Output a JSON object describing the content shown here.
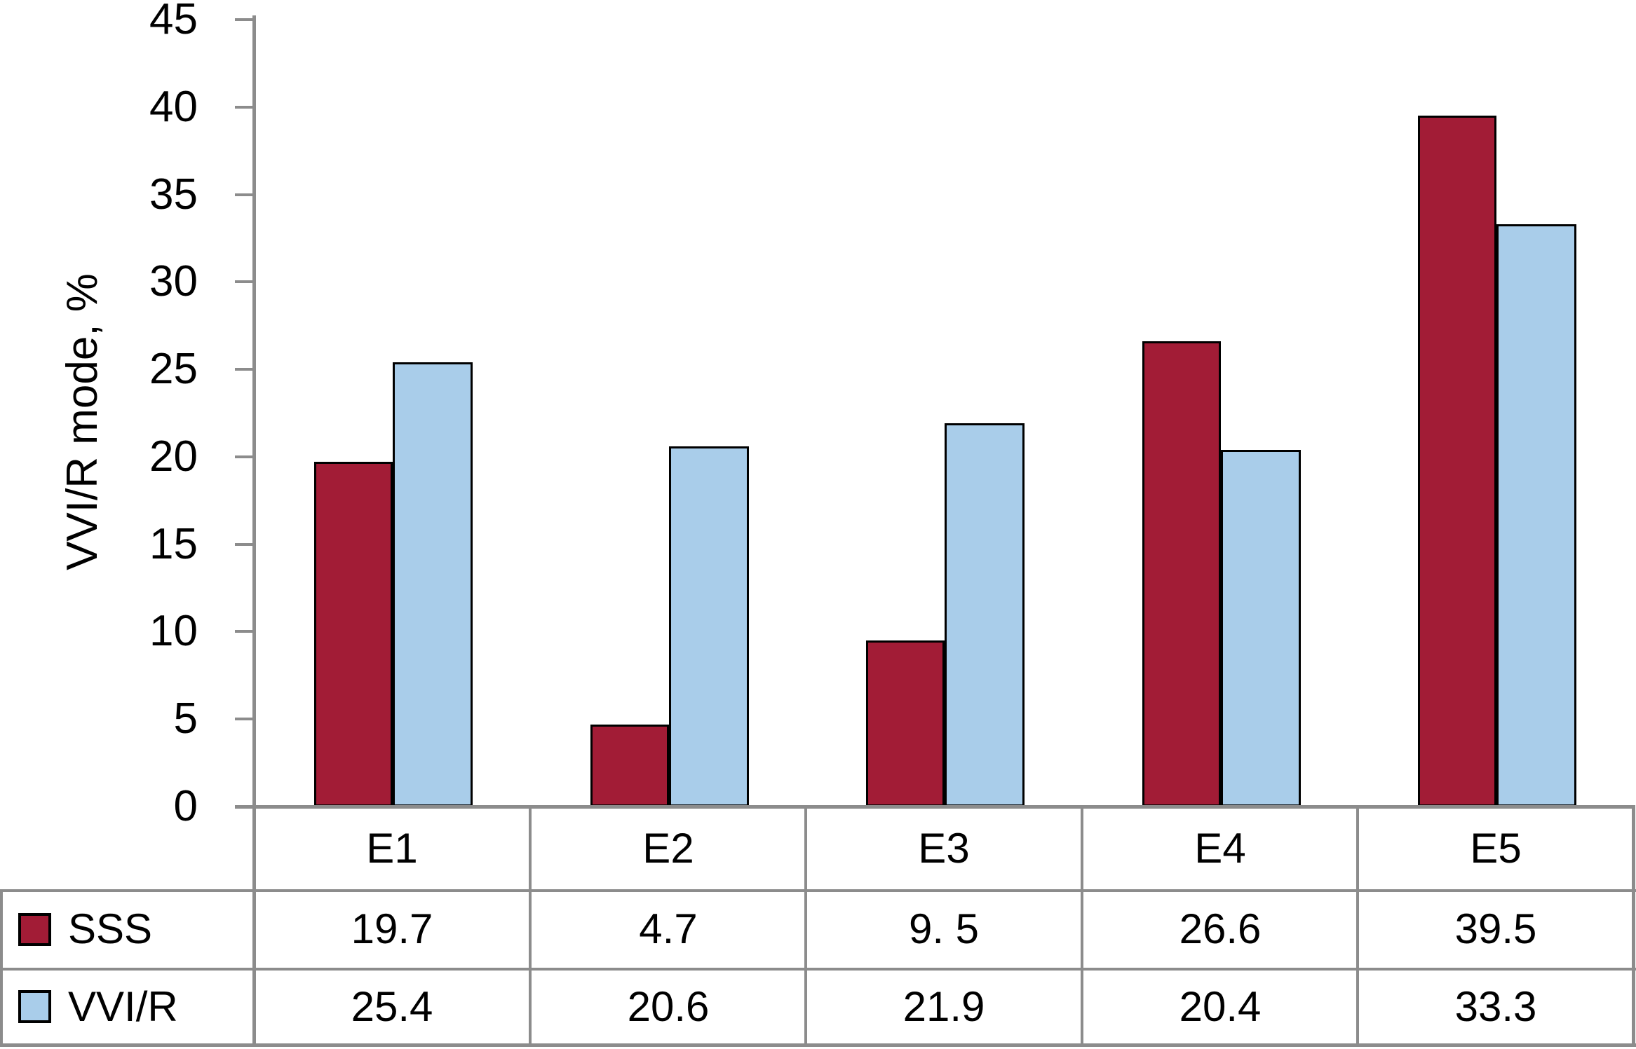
{
  "chart_data": {
    "type": "bar",
    "title": "",
    "ylabel": "VVI/R mode, %",
    "xlabel": "",
    "ylim": [
      0,
      45
    ],
    "ytick_step": 5,
    "yticks": [
      "0",
      "5",
      "10",
      "15",
      "20",
      "25",
      "30",
      "35",
      "40",
      "45"
    ],
    "categories": [
      "E1",
      "E2",
      "E3",
      "E4",
      "E5"
    ],
    "series": [
      {
        "name": "SSS",
        "color": "#A21C36",
        "values": [
          19.7,
          4.7,
          9.5,
          26.6,
          39.5
        ],
        "display_values": [
          "19.7",
          "4.7",
          "9. 5",
          "26.6",
          "39.5"
        ]
      },
      {
        "name": "VVI/R",
        "color": "#A9CDEA",
        "values": [
          25.4,
          20.6,
          21.9,
          20.4,
          33.3
        ],
        "display_values": [
          "25.4",
          "20.6",
          "21.9",
          "20.4",
          "33.3"
        ]
      }
    ],
    "legend_position": "table-left",
    "grid": false,
    "bar_border_color": "#000000",
    "axis_line_color": "#8C8C8C",
    "table_line_color": "#8C8C8C",
    "text_color": "#000000"
  }
}
